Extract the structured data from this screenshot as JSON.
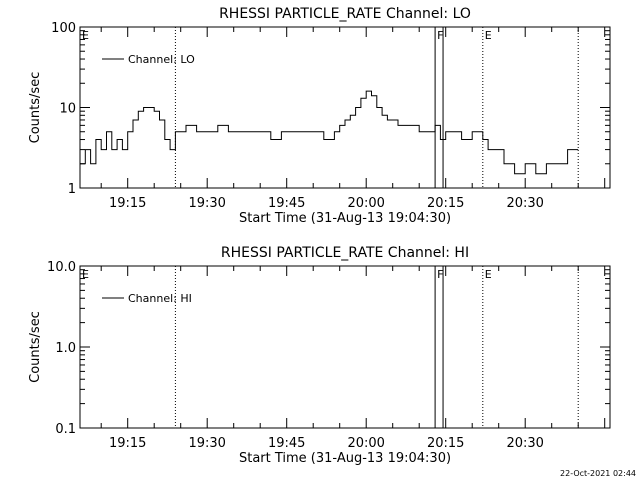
{
  "chart_data": [
    {
      "type": "line",
      "title": "RHESSI PARTICLE_RATE Channel: LO",
      "xlabel": "Start Time (31-Aug-13 19:04:30)",
      "ylabel": "Counts/sec",
      "yscale": "log",
      "ylim": [
        1,
        100
      ],
      "yticks": [
        "1",
        "10",
        "100"
      ],
      "xlim": [
        "19:06",
        "20:46"
      ],
      "xticks": [
        "19:15",
        "19:30",
        "19:45",
        "20:00",
        "20:15",
        "20:30"
      ],
      "legend": "Channel: LO",
      "legend_position": "top-left",
      "markers": [
        {
          "label": "E",
          "time": "19:06",
          "style": "dotted"
        },
        {
          "label": "",
          "time": "19:24",
          "style": "dotted"
        },
        {
          "label": "F",
          "time": "20:13",
          "style": "solid"
        },
        {
          "label": "",
          "time": "20:14.5",
          "style": "solid"
        },
        {
          "label": "E",
          "time": "20:22",
          "style": "dotted"
        },
        {
          "label": "",
          "time": "20:40",
          "style": "dotted"
        }
      ],
      "series": [
        {
          "name": "Channel: LO",
          "x": [
            "19:06",
            "19:07",
            "19:08",
            "19:09",
            "19:10",
            "19:11",
            "19:12",
            "19:13",
            "19:14",
            "19:15",
            "19:16",
            "19:17",
            "19:18",
            "19:19",
            "19:20",
            "19:21",
            "19:22",
            "19:23",
            "19:24",
            "19:26",
            "19:28",
            "19:30",
            "19:32",
            "19:34",
            "19:36",
            "19:38",
            "19:40",
            "19:42",
            "19:44",
            "19:46",
            "19:48",
            "19:50",
            "19:52",
            "19:54",
            "19:55",
            "19:56",
            "19:57",
            "19:58",
            "19:59",
            "20:00",
            "20:01",
            "20:02",
            "20:03",
            "20:04",
            "20:05",
            "20:06",
            "20:08",
            "20:10",
            "20:12",
            "20:13",
            "20:14",
            "20:15",
            "20:16",
            "20:18",
            "20:20",
            "20:22",
            "20:23",
            "20:24",
            "20:26",
            "20:28",
            "20:30",
            "20:32",
            "20:34",
            "20:36",
            "20:38",
            "20:40"
          ],
          "values": [
            2,
            3,
            2,
            4,
            3,
            5,
            3,
            4,
            3,
            5,
            7,
            9,
            10,
            10,
            9,
            7,
            4,
            3,
            5,
            6,
            5,
            5,
            6,
            5,
            5,
            5,
            5,
            4,
            5,
            5,
            5,
            5,
            4,
            5,
            6,
            7,
            8,
            10,
            13,
            16,
            14,
            10,
            8,
            7,
            7,
            6,
            6,
            5,
            5,
            6,
            4,
            5,
            5,
            4,
            5,
            4,
            3,
            3,
            2,
            1.5,
            2,
            1.5,
            2,
            2,
            3,
            3
          ]
        }
      ]
    },
    {
      "type": "line",
      "title": "RHESSI PARTICLE_RATE Channel: HI",
      "xlabel": "Start Time (31-Aug-13 19:04:30)",
      "ylabel": "Counts/sec",
      "yscale": "log",
      "ylim": [
        0.1,
        10
      ],
      "yticks": [
        "0.1",
        "1.0",
        "10.0"
      ],
      "xlim": [
        "19:06",
        "20:46"
      ],
      "xticks": [
        "19:15",
        "19:30",
        "19:45",
        "20:00",
        "20:15",
        "20:30"
      ],
      "legend": "Channel: HI",
      "legend_position": "top-left",
      "markers": [
        {
          "label": "E",
          "time": "19:06",
          "style": "dotted"
        },
        {
          "label": "",
          "time": "19:24",
          "style": "dotted"
        },
        {
          "label": "F",
          "time": "20:13",
          "style": "solid"
        },
        {
          "label": "",
          "time": "20:14.5",
          "style": "solid"
        },
        {
          "label": "E",
          "time": "20:22",
          "style": "dotted"
        },
        {
          "label": "",
          "time": "20:40",
          "style": "dotted"
        }
      ],
      "series": []
    }
  ],
  "footer": {
    "stamp": "22-Oct-2021 02:44"
  }
}
